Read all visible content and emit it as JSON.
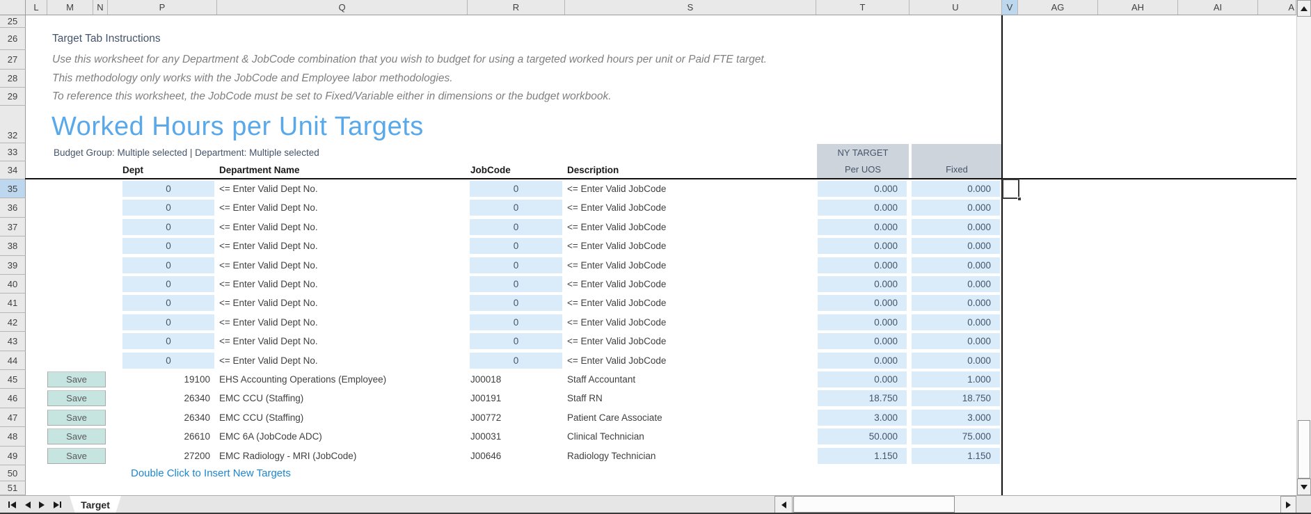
{
  "sheet": {
    "column_headers": [
      "L",
      "M",
      "N",
      "P",
      "Q",
      "R",
      "S",
      "T",
      "U",
      "V",
      "AG",
      "AH",
      "AI",
      "A"
    ],
    "selected_column": "V",
    "row_headers": [
      "25",
      "26",
      "27",
      "28",
      "29",
      "32",
      "33",
      "34",
      "35",
      "36",
      "37",
      "38",
      "39",
      "40",
      "41",
      "42",
      "43",
      "44",
      "45",
      "46",
      "47",
      "48",
      "49",
      "50",
      "51"
    ],
    "selected_row": "35"
  },
  "instructions": {
    "title": "Target Tab Instructions",
    "line1": "Use this worksheet for any Department & JobCode combination that you wish to budget for using a targeted worked hours per unit or Paid FTE target.",
    "line2": "This methodology only works with the JobCode and Employee labor methodologies.",
    "line3": "To reference this worksheet, the JobCode must be set to Fixed/Variable either in dimensions or the budget workbook."
  },
  "section": {
    "title": "Worked Hours per Unit Targets",
    "filters": "Budget Group: Multiple selected | Department: Multiple selected"
  },
  "table": {
    "headers": {
      "dept": "Dept",
      "department_name": "Department Name",
      "jobcode": "JobCode",
      "description": "Description",
      "ny_target": "NY TARGET",
      "per_uos": "Per UOS",
      "fixed": "Fixed"
    },
    "input_rows": [
      {
        "dept": "0",
        "dept_hint": "<= Enter Valid Dept No.",
        "jobcode": "0",
        "jobcode_hint": "<= Enter Valid JobCode",
        "per_uos": "0.000",
        "fixed": "0.000"
      },
      {
        "dept": "0",
        "dept_hint": "<= Enter Valid Dept No.",
        "jobcode": "0",
        "jobcode_hint": "<= Enter Valid JobCode",
        "per_uos": "0.000",
        "fixed": "0.000"
      },
      {
        "dept": "0",
        "dept_hint": "<= Enter Valid Dept No.",
        "jobcode": "0",
        "jobcode_hint": "<= Enter Valid JobCode",
        "per_uos": "0.000",
        "fixed": "0.000"
      },
      {
        "dept": "0",
        "dept_hint": "<= Enter Valid Dept No.",
        "jobcode": "0",
        "jobcode_hint": "<= Enter Valid JobCode",
        "per_uos": "0.000",
        "fixed": "0.000"
      },
      {
        "dept": "0",
        "dept_hint": "<= Enter Valid Dept No.",
        "jobcode": "0",
        "jobcode_hint": "<= Enter Valid JobCode",
        "per_uos": "0.000",
        "fixed": "0.000"
      },
      {
        "dept": "0",
        "dept_hint": "<= Enter Valid Dept No.",
        "jobcode": "0",
        "jobcode_hint": "<= Enter Valid JobCode",
        "per_uos": "0.000",
        "fixed": "0.000"
      },
      {
        "dept": "0",
        "dept_hint": "<= Enter Valid Dept No.",
        "jobcode": "0",
        "jobcode_hint": "<= Enter Valid JobCode",
        "per_uos": "0.000",
        "fixed": "0.000"
      },
      {
        "dept": "0",
        "dept_hint": "<= Enter Valid Dept No.",
        "jobcode": "0",
        "jobcode_hint": "<= Enter Valid JobCode",
        "per_uos": "0.000",
        "fixed": "0.000"
      },
      {
        "dept": "0",
        "dept_hint": "<= Enter Valid Dept No.",
        "jobcode": "0",
        "jobcode_hint": "<= Enter Valid JobCode",
        "per_uos": "0.000",
        "fixed": "0.000"
      },
      {
        "dept": "0",
        "dept_hint": "<= Enter Valid Dept No.",
        "jobcode": "0",
        "jobcode_hint": "<= Enter Valid JobCode",
        "per_uos": "0.000",
        "fixed": "0.000"
      }
    ],
    "saved_rows": [
      {
        "action": "Save",
        "dept": "19100",
        "department_name": "EHS Accounting Operations (Employee)",
        "jobcode": "J00018",
        "description": "Staff Accountant",
        "per_uos": "0.000",
        "fixed": "1.000"
      },
      {
        "action": "Save",
        "dept": "26340",
        "department_name": "EMC CCU (Staffing)",
        "jobcode": "J00191",
        "description": "Staff RN",
        "per_uos": "18.750",
        "fixed": "18.750"
      },
      {
        "action": "Save",
        "dept": "26340",
        "department_name": "EMC CCU (Staffing)",
        "jobcode": "J00772",
        "description": "Patient Care Associate",
        "per_uos": "3.000",
        "fixed": "3.000"
      },
      {
        "action": "Save",
        "dept": "26610",
        "department_name": "EMC 6A (JobCode ADC)",
        "jobcode": "J00031",
        "description": "Clinical Technician",
        "per_uos": "50.000",
        "fixed": "75.000"
      },
      {
        "action": "Save",
        "dept": "27200",
        "department_name": "EMC Radiology - MRI (JobCode)",
        "jobcode": "J00646",
        "description": "Radiology Technician",
        "per_uos": "1.150",
        "fixed": "1.150"
      }
    ],
    "insert_link": "Double Click to Insert New Targets"
  },
  "tabs": {
    "active": "Target"
  },
  "icons": {
    "first_sheet": "first-sheet-icon",
    "prev_sheet": "previous-sheet-icon",
    "next_sheet": "next-sheet-icon",
    "last_sheet": "last-sheet-icon",
    "scroll_up": "scroll-up-arrow",
    "scroll_down": "scroll-down-arrow",
    "scroll_left": "scroll-left-arrow",
    "scroll_right": "scroll-right-arrow"
  },
  "colors": {
    "accent_title": "#58A8EA",
    "input_cell_fill": "#DAECFA",
    "target_header_fill": "#CDD4DB",
    "selected_header_fill": "#BDD7EE",
    "link_blue": "#1B86D2",
    "save_button_fill": "#C6E4E0",
    "slate_text": "#44546A"
  }
}
